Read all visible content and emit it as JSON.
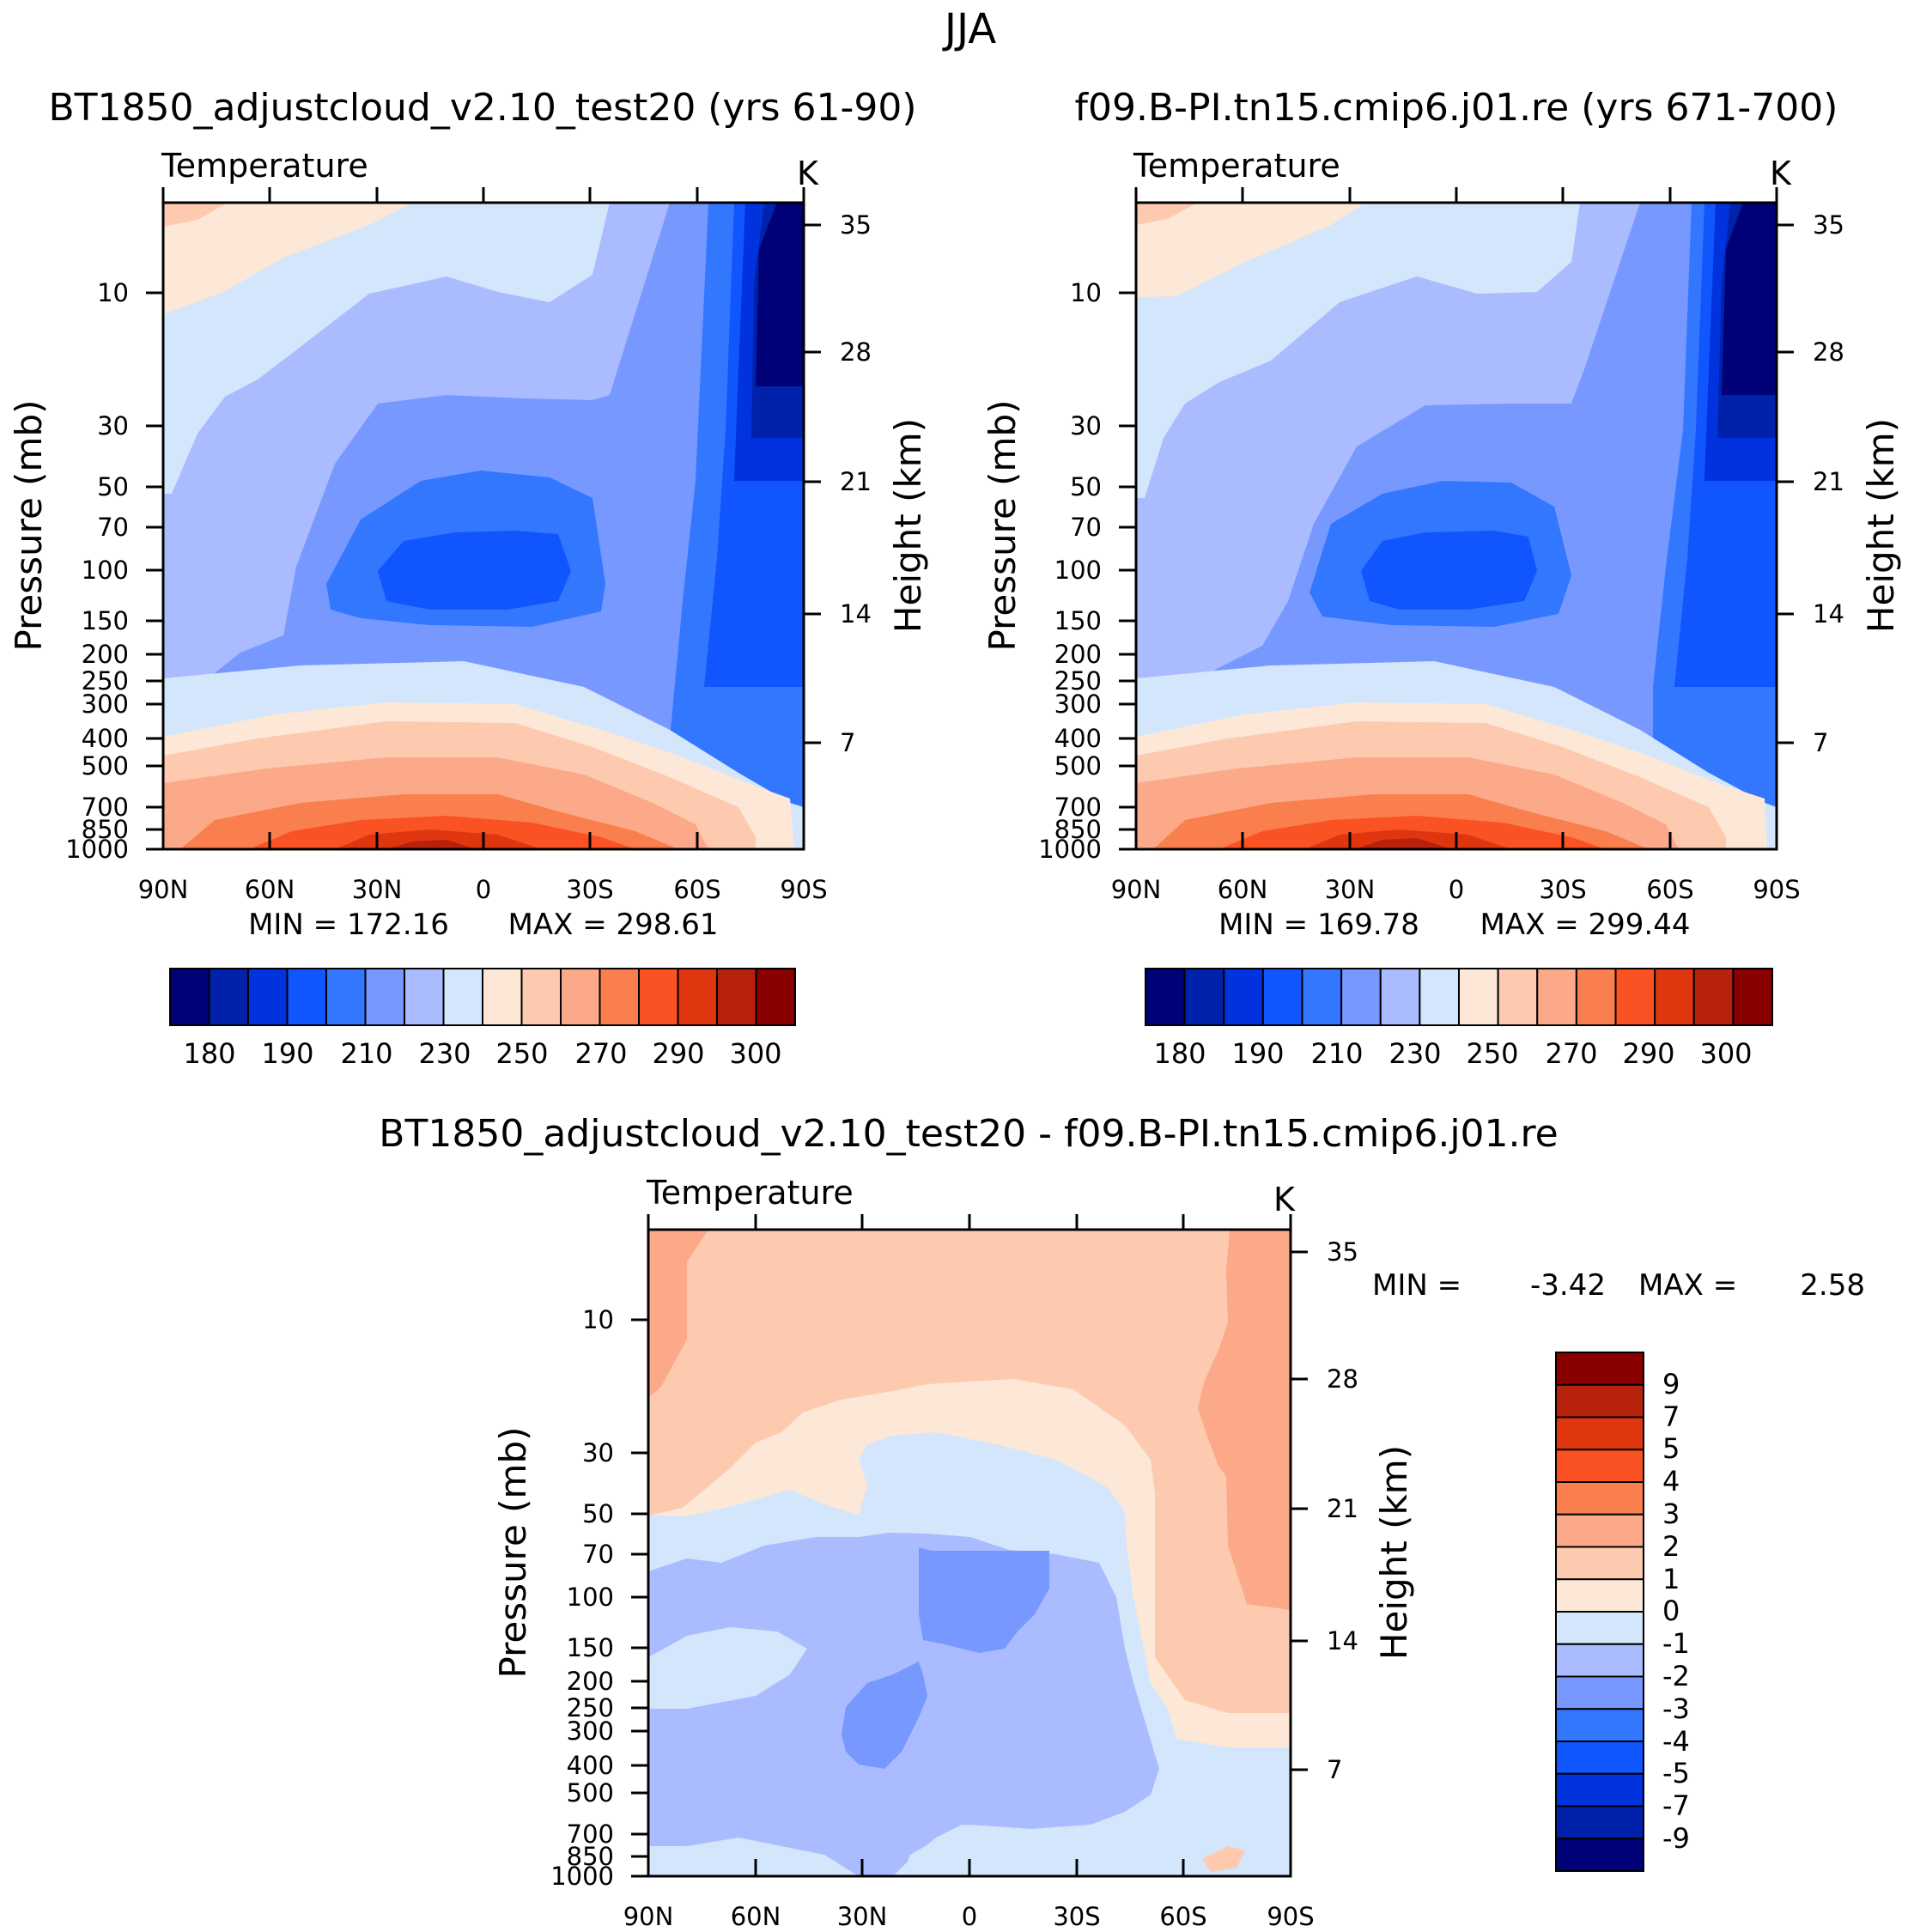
{
  "figure": {
    "season_title": "JJA",
    "variable_label": "Temperature",
    "units_label": "K",
    "left_axis_label": "Pressure (mb)",
    "right_axis_label": "Height (km)"
  },
  "colors": {
    "abs_palette": [
      "#000077",
      "#0022aa",
      "#0033dd",
      "#1155ff",
      "#3377ff",
      "#7799ff",
      "#aabbff",
      "#d4e6fb",
      "#fde8d8",
      "#fdcab0",
      "#fca98a",
      "#fa7f4e",
      "#fa5222",
      "#e03610",
      "#b7220c",
      "#880000"
    ],
    "diff_palette": [
      "#000077",
      "#0022aa",
      "#0033dd",
      "#1155ff",
      "#3377ff",
      "#7799ff",
      "#aabbff",
      "#d4e6fb",
      "#fde8d8",
      "#fdcab0",
      "#fca98a",
      "#fa7f4e",
      "#fa5222",
      "#e03610",
      "#b7220c",
      "#880000"
    ]
  },
  "chart_data": [
    {
      "type": "heatmap",
      "panel": "model",
      "title": "BT1850_adjustcloud_v2.10_test20 (yrs 61-90)",
      "subtitle": "Temperature",
      "units": "K",
      "xlabel": "",
      "ylabel": "Pressure (mb)",
      "ylabel_right": "Height (km)",
      "x_ticks": [
        "90N",
        "60N",
        "30N",
        "0",
        "30S",
        "60S",
        "90S"
      ],
      "x_values": [
        90,
        60,
        30,
        0,
        -30,
        -60,
        -90
      ],
      "y_ticks": [
        10,
        30,
        50,
        70,
        100,
        150,
        200,
        250,
        300,
        400,
        500,
        700,
        850,
        1000
      ],
      "y_right_ticks": [
        35,
        28,
        21,
        14,
        7
      ],
      "ylim": [
        5,
        1000
      ],
      "min": 172.16,
      "max": 298.61,
      "min_label": "MIN = 172.16",
      "max_label": "MAX = 298.61",
      "colorbar_labels": [
        "180",
        "190",
        "210",
        "230",
        "250",
        "270",
        "290",
        "300"
      ]
    },
    {
      "type": "heatmap",
      "panel": "observations",
      "title": "f09.B-PI.tn15.cmip6.j01.re (yrs 671-700)",
      "subtitle": "Temperature",
      "units": "K",
      "xlabel": "",
      "ylabel": "Pressure (mb)",
      "ylabel_right": "Height (km)",
      "x_ticks": [
        "90N",
        "60N",
        "30N",
        "0",
        "30S",
        "60S",
        "90S"
      ],
      "x_values": [
        90,
        60,
        30,
        0,
        -30,
        -60,
        -90
      ],
      "y_ticks": [
        10,
        30,
        50,
        70,
        100,
        150,
        200,
        250,
        300,
        400,
        500,
        700,
        850,
        1000
      ],
      "y_right_ticks": [
        35,
        28,
        21,
        14,
        7
      ],
      "ylim": [
        5,
        1000
      ],
      "min": 169.78,
      "max": 299.44,
      "min_label": "MIN = 169.78",
      "max_label": "MAX = 299.44",
      "colorbar_labels": [
        "180",
        "190",
        "210",
        "230",
        "250",
        "270",
        "290",
        "300"
      ]
    },
    {
      "type": "heatmap",
      "panel": "difference",
      "title": "BT1850_adjustcloud_v2.10_test20 - f09.B-PI.tn15.cmip6.j01.re",
      "subtitle": "Temperature",
      "units": "K",
      "xlabel": "",
      "ylabel": "Pressure (mb)",
      "ylabel_right": "Height (km)",
      "x_ticks": [
        "90N",
        "60N",
        "30N",
        "0",
        "30S",
        "60S",
        "90S"
      ],
      "x_values": [
        90,
        60,
        30,
        0,
        -30,
        -60,
        -90
      ],
      "y_ticks": [
        10,
        30,
        50,
        70,
        100,
        150,
        200,
        250,
        300,
        400,
        500,
        700,
        850,
        1000
      ],
      "y_right_ticks": [
        35,
        28,
        21,
        14,
        7
      ],
      "ylim": [
        5,
        1000
      ],
      "min": -3.42,
      "max": 2.58,
      "min_label": "MIN =",
      "min_value": "-3.42",
      "max_label": "MAX =",
      "max_value": "2.58",
      "colorbar_labels": [
        "9",
        "7",
        "5",
        "4",
        "3",
        "2",
        "1",
        "0",
        "-1",
        "-2",
        "-3",
        "-4",
        "-5",
        "-7",
        "-9"
      ]
    }
  ]
}
